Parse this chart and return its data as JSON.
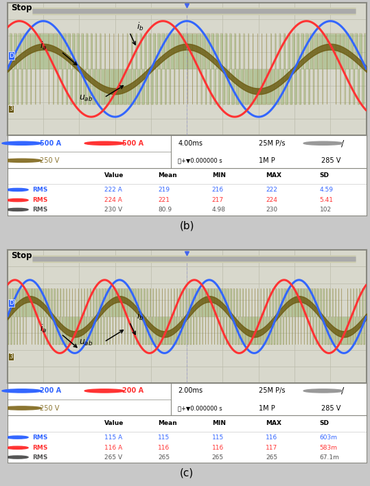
{
  "panel_b": {
    "ch1_color": "#3366FF",
    "ch2_color": "#FF3333",
    "ch3_color_fill": "#8BAD60",
    "ch3_color_line": "#8B7530",
    "ia_amplitude": 0.72,
    "ib_amplitude": 0.72,
    "ia_freq_cycles": 2.5,
    "ib_phase_shift": 1.047,
    "amp_v": 0.38,
    "pwm_density": 80,
    "info_ch1": "500 A",
    "info_ch2": "500 A",
    "info_ch3": "250 V",
    "info_time": "4.00ms",
    "info_sample": "25M P/s",
    "info_volt": "285 V",
    "table_row1": [
      "222 A",
      "219",
      "216",
      "222",
      "4.59"
    ],
    "table_row2": [
      "224 A",
      "221",
      "217",
      "224",
      "5.41"
    ],
    "table_row3": [
      "230 V",
      "80.9",
      "4.98",
      "230",
      "102"
    ],
    "label": "(b)"
  },
  "panel_c": {
    "ch1_color": "#3366FF",
    "ch2_color": "#FF3333",
    "ch3_color_fill": "#8BAD60",
    "ch3_color_line": "#8B7530",
    "ia_amplitude": 0.55,
    "ib_amplitude": 0.55,
    "ia_freq_cycles": 4.0,
    "ib_phase_shift": 1.047,
    "amp_v": 0.3,
    "pwm_density": 120,
    "info_ch1": "200 A",
    "info_ch2": "200 A",
    "info_ch3": "250 V",
    "info_time": "2.00ms",
    "info_sample": "25M P/s",
    "info_volt": "285 V",
    "table_row1": [
      "115 A",
      "115",
      "115",
      "116",
      "603m"
    ],
    "table_row2": [
      "116 A",
      "116",
      "116",
      "117",
      "583m"
    ],
    "table_row3": [
      "265 V",
      "265",
      "265",
      "265",
      "67.1m"
    ],
    "label": "(c)"
  },
  "bg_color": "#C8C8C8",
  "scope_bg": "#D8D8CC",
  "grid_color": "#BBBBAA",
  "scope_border": "#888880"
}
